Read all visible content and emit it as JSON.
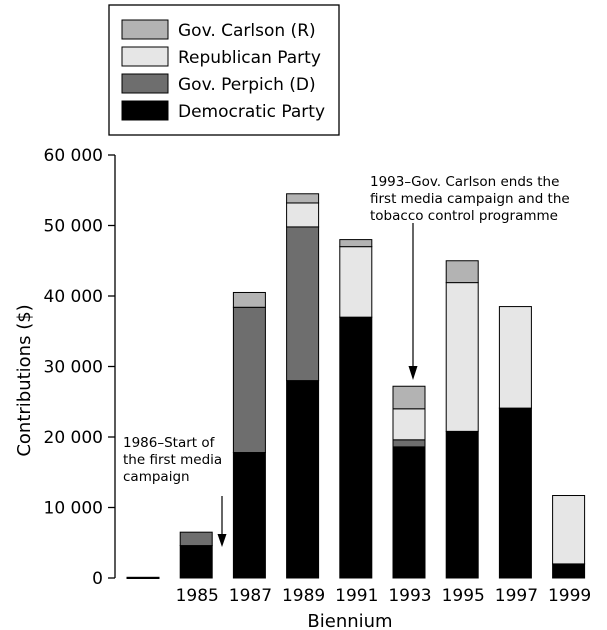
{
  "chart_data": {
    "type": "bar",
    "stacked": true,
    "categories": [
      "",
      "1985",
      "1987",
      "1989",
      "1991",
      "1993",
      "1995",
      "1997",
      "1999"
    ],
    "series": [
      {
        "name": "Democratic Party",
        "color": "#000000",
        "values": [
          100,
          4600,
          17800,
          28000,
          37000,
          18600,
          20800,
          24100,
          2000
        ]
      },
      {
        "name": "Gov. Perpich (D)",
        "color": "#6e6e6e",
        "values": [
          0,
          1900,
          20600,
          21800,
          0,
          1000,
          0,
          0,
          0
        ]
      },
      {
        "name": "Republican Party",
        "color": "#e6e6e6",
        "values": [
          0,
          0,
          0,
          3400,
          10000,
          4400,
          21100,
          14400,
          9700
        ]
      },
      {
        "name": "Gov. Carlson (R)",
        "color": "#b3b3b3",
        "values": [
          0,
          0,
          2100,
          1300,
          1000,
          3200,
          3100,
          0,
          0
        ]
      }
    ],
    "legend_order": [
      "Gov. Carlson (R)",
      "Republican Party",
      "Gov. Perpich (D)",
      "Democratic Party"
    ],
    "xlabel": "Biennium",
    "ylabel": "Contributions ($)",
    "ylim": [
      0,
      60000
    ],
    "yticks": [
      0,
      10000,
      20000,
      30000,
      40000,
      50000,
      60000
    ],
    "ytick_labels": [
      "0",
      "10 000",
      "20 000",
      "30 000",
      "40 000",
      "50 000",
      "60 000"
    ],
    "legend_position": "top-left",
    "grid": false,
    "annotations": [
      {
        "lines": [
          "1986–Start of",
          "the first media",
          "campaign"
        ]
      },
      {
        "lines": [
          "1993–Gov. Carlson ends the",
          "first media campaign and the",
          "tobacco control programme"
        ]
      }
    ]
  }
}
